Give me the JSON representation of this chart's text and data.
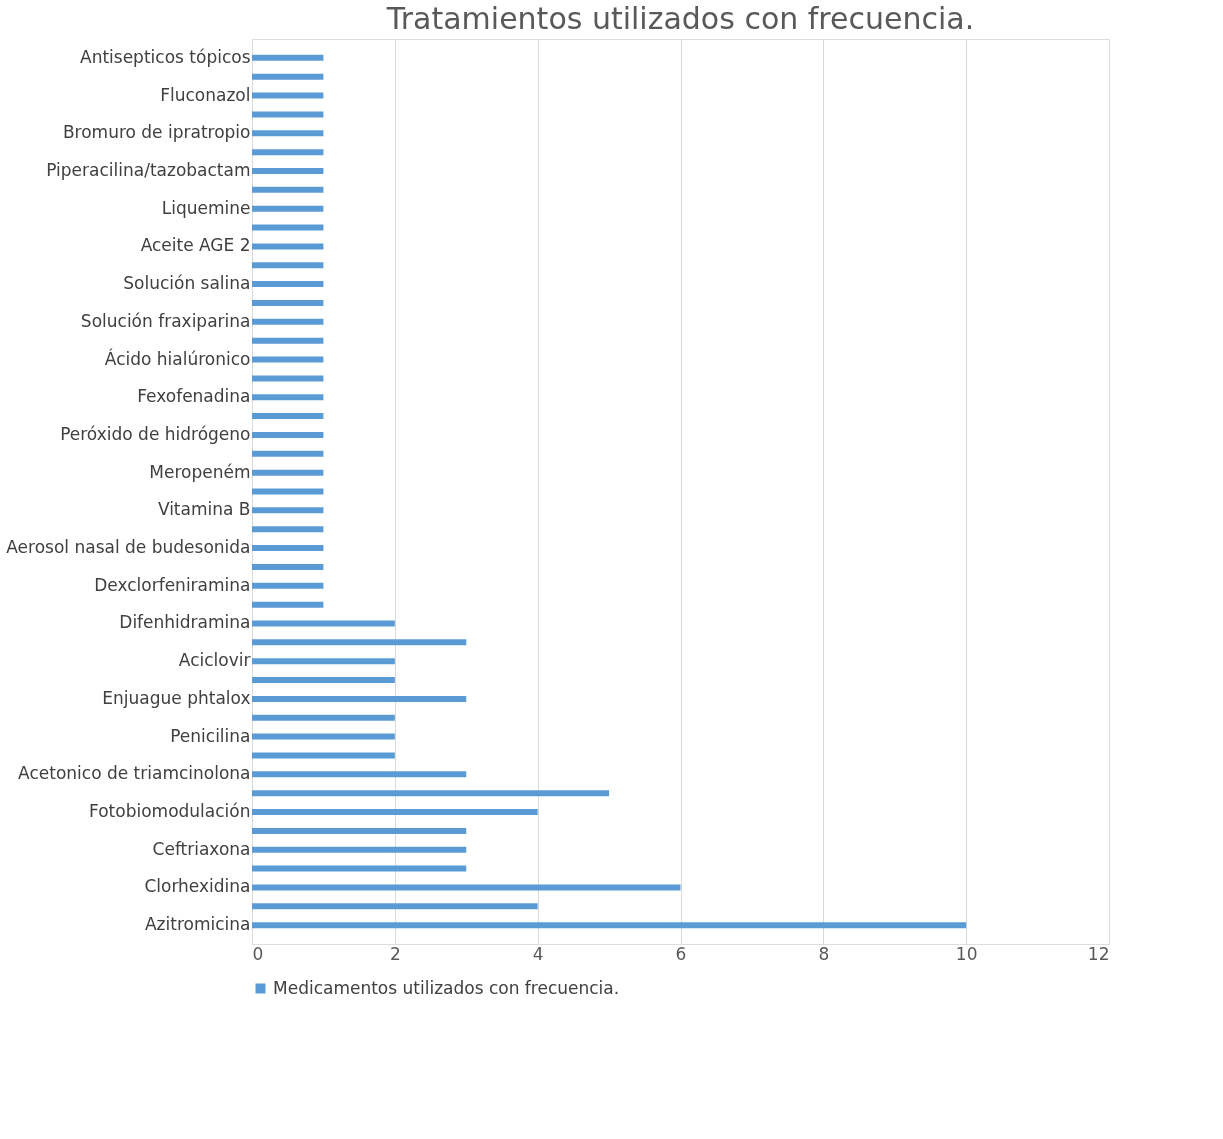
{
  "chart_data": {
    "type": "bar",
    "orientation": "horizontal",
    "title": "Tratamientos utilizados con frecuencia.",
    "categories": [
      "Antisepticos tópicos",
      null,
      "Fluconazol",
      null,
      "Bromuro de ipratropio",
      null,
      "Piperacilina/tazobactam",
      null,
      "Liquemine",
      null,
      "Aceite AGE 2",
      null,
      "Solución salina",
      null,
      "Solución fraxiparina",
      null,
      "Ácido hialúronico",
      null,
      "Fexofenadina",
      null,
      "Peróxido de hidrógeno",
      null,
      "Meropeném",
      null,
      "Vitamina B",
      null,
      "Aerosol nasal de budesonida",
      null,
      "Dexclorfeniramina",
      null,
      "Difenhidramina",
      null,
      "Aciclovir",
      null,
      "Enjuague phtalox",
      null,
      "Penicilina",
      null,
      "Acetonico de triamcinolona",
      null,
      "Fotobiomodulación",
      null,
      "Ceftriaxona",
      null,
      "Clorhexidina",
      null,
      "Azitromicina"
    ],
    "series": [
      {
        "name": "Medicamentos utilizados con frecuencia.",
        "color": "#5b9bd5",
        "values": [
          1,
          1,
          1,
          1,
          1,
          1,
          1,
          1,
          1,
          1,
          1,
          1,
          1,
          1,
          1,
          1,
          1,
          1,
          1,
          1,
          1,
          1,
          1,
          1,
          1,
          1,
          1,
          1,
          1,
          1,
          2,
          3,
          2,
          2,
          3,
          2,
          2,
          2,
          3,
          5,
          4,
          3,
          3,
          3,
          6,
          4,
          10
        ]
      }
    ],
    "xlim": [
      0,
      12
    ],
    "xticks": [
      0,
      2,
      4,
      6,
      8,
      10,
      12
    ],
    "grid": "x",
    "legend": "bottom"
  }
}
